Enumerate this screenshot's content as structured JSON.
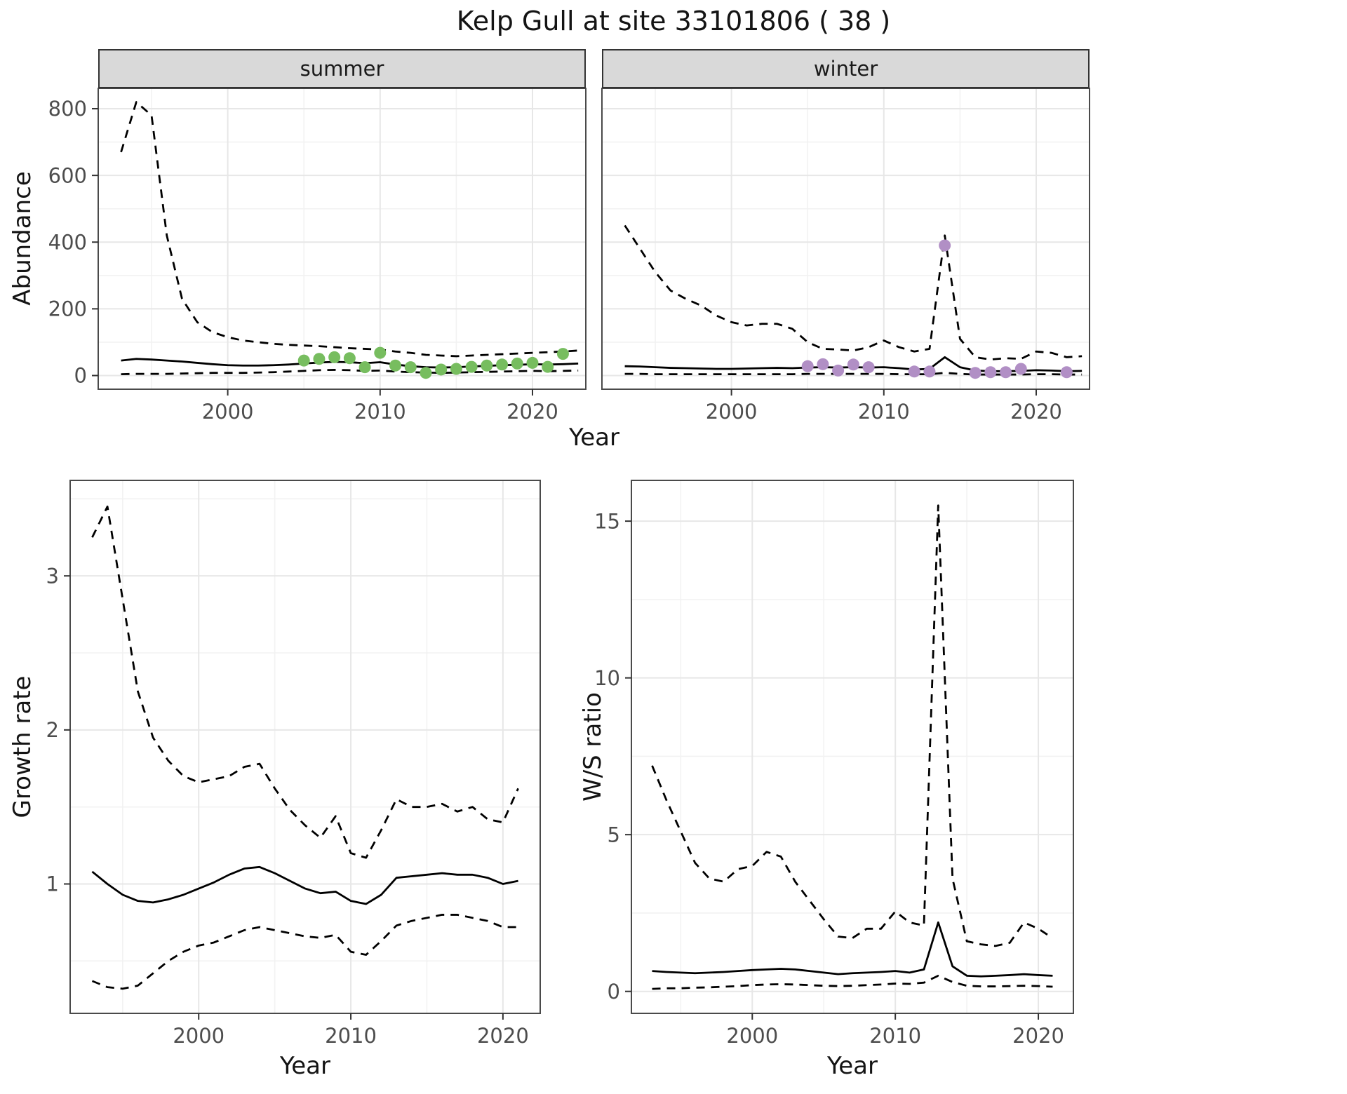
{
  "title": "Kelp Gull at site 33101806 ( 38 )",
  "chart_data": [
    {
      "id": "abundance-summer",
      "type": "line",
      "facet": "summer",
      "xlabel": "Year",
      "ylabel": "Abundance",
      "xlim": [
        1991.5,
        2023.5
      ],
      "ylim": [
        -41,
        861
      ],
      "xticks": [
        2000,
        2010,
        2020
      ],
      "yticks": [
        0,
        200,
        400,
        600,
        800
      ],
      "xminor": [
        1995,
        2005,
        2015
      ],
      "yminor": [
        100,
        300,
        500,
        700
      ],
      "grid": true,
      "legend": "none",
      "x": [
        1993,
        1994,
        1995,
        1996,
        1997,
        1998,
        1999,
        2000,
        2001,
        2002,
        2003,
        2004,
        2005,
        2006,
        2007,
        2008,
        2009,
        2010,
        2011,
        2012,
        2013,
        2014,
        2015,
        2016,
        2017,
        2018,
        2019,
        2020,
        2021,
        2022,
        2023
      ],
      "series": [
        {
          "name": "mean",
          "style": "solid",
          "values": [
            45,
            50,
            48,
            45,
            42,
            38,
            34,
            31,
            30,
            30,
            31,
            33,
            36,
            39,
            41,
            40,
            37,
            40,
            33,
            28,
            25,
            24,
            25,
            27,
            29,
            31,
            32,
            34,
            33,
            34,
            36
          ]
        },
        {
          "name": "upper-95ci",
          "style": "dashed",
          "values": [
            670,
            820,
            780,
            420,
            230,
            160,
            130,
            115,
            105,
            100,
            95,
            92,
            90,
            88,
            85,
            82,
            80,
            78,
            72,
            68,
            62,
            60,
            58,
            60,
            62,
            64,
            66,
            68,
            70,
            72,
            75
          ]
        },
        {
          "name": "lower-95ci",
          "style": "dashed",
          "values": [
            4,
            5,
            5,
            5,
            6,
            7,
            8,
            8,
            8,
            9,
            10,
            12,
            14,
            16,
            17,
            16,
            14,
            15,
            12,
            10,
            9,
            8,
            9,
            10,
            11,
            12,
            13,
            14,
            13,
            14,
            15
          ]
        }
      ],
      "points": {
        "name": "observed-counts-summer",
        "color": "#77bd5f",
        "x": [
          2005,
          2006,
          2007,
          2008,
          2009,
          2010,
          2011,
          2012,
          2013,
          2014,
          2015,
          2016,
          2017,
          2018,
          2019,
          2020,
          2021,
          2022
        ],
        "y": [
          45,
          50,
          55,
          52,
          25,
          68,
          30,
          25,
          8,
          18,
          20,
          26,
          30,
          33,
          36,
          38,
          26,
          65
        ]
      }
    },
    {
      "id": "abundance-winter",
      "type": "line",
      "facet": "winter",
      "xlabel": "Year",
      "ylabel": "",
      "xlim": [
        1991.5,
        2023.5
      ],
      "ylim": [
        -41,
        861
      ],
      "xticks": [
        2000,
        2010,
        2020
      ],
      "yticks": [
        0,
        200,
        400,
        600,
        800
      ],
      "xminor": [
        1995,
        2005,
        2015
      ],
      "yminor": [
        100,
        300,
        500,
        700
      ],
      "grid": true,
      "legend": "none",
      "x": [
        1993,
        1994,
        1995,
        1996,
        1997,
        1998,
        1999,
        2000,
        2001,
        2002,
        2003,
        2004,
        2005,
        2006,
        2007,
        2008,
        2009,
        2010,
        2011,
        2012,
        2013,
        2014,
        2015,
        2016,
        2017,
        2018,
        2019,
        2020,
        2021,
        2022,
        2023
      ],
      "series": [
        {
          "name": "mean",
          "style": "solid",
          "values": [
            28,
            27,
            25,
            23,
            22,
            21,
            20,
            20,
            21,
            22,
            23,
            22,
            24,
            25,
            24,
            25,
            24,
            25,
            22,
            18,
            20,
            55,
            25,
            15,
            13,
            13,
            14,
            16,
            15,
            13,
            14
          ]
        },
        {
          "name": "upper-95ci",
          "style": "dashed",
          "values": [
            450,
            380,
            310,
            255,
            230,
            210,
            180,
            160,
            150,
            155,
            155,
            140,
            100,
            80,
            78,
            75,
            85,
            105,
            85,
            72,
            80,
            420,
            110,
            55,
            48,
            52,
            50,
            72,
            68,
            55,
            58
          ]
        },
        {
          "name": "lower-95ci",
          "style": "dashed",
          "values": [
            5,
            5,
            4,
            4,
            4,
            4,
            4,
            4,
            4,
            4,
            4,
            4,
            5,
            5,
            5,
            5,
            5,
            5,
            4,
            4,
            4,
            8,
            5,
            3,
            3,
            3,
            3,
            4,
            4,
            3,
            3
          ]
        }
      ],
      "points": {
        "name": "observed-counts-winter",
        "color": "#b18fc5",
        "x": [
          2005,
          2006,
          2007,
          2008,
          2009,
          2012,
          2013,
          2014,
          2016,
          2017,
          2018,
          2019,
          2022
        ],
        "y": [
          28,
          34,
          15,
          33,
          25,
          12,
          12,
          390,
          8,
          10,
          10,
          20,
          10
        ]
      }
    },
    {
      "id": "growth-rate",
      "type": "line",
      "facet": "",
      "xlabel": "Year",
      "ylabel": "Growth rate",
      "xlim": [
        1991.55,
        2022.45
      ],
      "ylim": [
        0.16,
        3.62
      ],
      "xticks": [
        2000,
        2010,
        2020
      ],
      "yticks": [
        1,
        2,
        3
      ],
      "xminor": [
        1995,
        2005,
        2015
      ],
      "yminor": [
        0.5,
        1.5,
        2.5,
        3.5
      ],
      "grid": true,
      "legend": "none",
      "x": [
        1993,
        1994,
        1995,
        1996,
        1997,
        1998,
        1999,
        2000,
        2001,
        2002,
        2003,
        2004,
        2005,
        2006,
        2007,
        2008,
        2009,
        2010,
        2011,
        2012,
        2013,
        2014,
        2015,
        2016,
        2017,
        2018,
        2019,
        2020,
        2021
      ],
      "series": [
        {
          "name": "mean",
          "style": "solid",
          "values": [
            1.08,
            1.0,
            0.93,
            0.89,
            0.88,
            0.9,
            0.93,
            0.97,
            1.01,
            1.06,
            1.1,
            1.11,
            1.07,
            1.02,
            0.97,
            0.94,
            0.95,
            0.89,
            0.87,
            0.93,
            1.04,
            1.05,
            1.06,
            1.07,
            1.06,
            1.06,
            1.04,
            1.0,
            1.02
          ]
        },
        {
          "name": "upper-95ci",
          "style": "dashed",
          "values": [
            3.25,
            3.45,
            2.85,
            2.25,
            1.95,
            1.8,
            1.7,
            1.66,
            1.68,
            1.7,
            1.76,
            1.78,
            1.62,
            1.48,
            1.38,
            1.3,
            1.44,
            1.2,
            1.17,
            1.35,
            1.55,
            1.5,
            1.5,
            1.52,
            1.47,
            1.5,
            1.42,
            1.4,
            1.62
          ]
        },
        {
          "name": "lower-95ci",
          "style": "dashed",
          "values": [
            0.37,
            0.33,
            0.32,
            0.34,
            0.42,
            0.5,
            0.56,
            0.6,
            0.62,
            0.66,
            0.7,
            0.72,
            0.7,
            0.68,
            0.66,
            0.65,
            0.67,
            0.56,
            0.54,
            0.63,
            0.73,
            0.76,
            0.78,
            0.8,
            0.8,
            0.78,
            0.76,
            0.72,
            0.72
          ]
        }
      ]
    },
    {
      "id": "ws-ratio",
      "type": "line",
      "facet": "",
      "xlabel": "Year",
      "ylabel": "W/S ratio",
      "xlim": [
        1991.55,
        2022.45
      ],
      "ylim": [
        -0.7,
        16.3
      ],
      "xticks": [
        2000,
        2010,
        2020
      ],
      "yticks": [
        0,
        5,
        10,
        15
      ],
      "xminor": [
        1995,
        2005,
        2015
      ],
      "yminor": [
        2.5,
        7.5,
        12.5
      ],
      "grid": true,
      "legend": "none",
      "x": [
        1993,
        1994,
        1995,
        1996,
        1997,
        1998,
        1999,
        2000,
        2001,
        2002,
        2003,
        2004,
        2005,
        2006,
        2007,
        2008,
        2009,
        2010,
        2011,
        2012,
        2013,
        2014,
        2015,
        2016,
        2017,
        2018,
        2019,
        2020,
        2021
      ],
      "series": [
        {
          "name": "mean",
          "style": "solid",
          "values": [
            0.65,
            0.62,
            0.6,
            0.58,
            0.6,
            0.62,
            0.65,
            0.68,
            0.7,
            0.72,
            0.7,
            0.65,
            0.6,
            0.55,
            0.58,
            0.6,
            0.62,
            0.65,
            0.6,
            0.7,
            2.2,
            0.8,
            0.5,
            0.48,
            0.5,
            0.52,
            0.55,
            0.52,
            0.5
          ]
        },
        {
          "name": "upper-95ci",
          "style": "dashed",
          "values": [
            7.2,
            6.1,
            5.1,
            4.1,
            3.6,
            3.5,
            3.9,
            4.0,
            4.45,
            4.3,
            3.5,
            2.9,
            2.3,
            1.75,
            1.7,
            2.0,
            2.0,
            2.55,
            2.2,
            2.1,
            15.5,
            3.6,
            1.6,
            1.5,
            1.45,
            1.55,
            2.2,
            2.0,
            1.7
          ]
        },
        {
          "name": "lower-95ci",
          "style": "dashed",
          "values": [
            0.08,
            0.1,
            0.1,
            0.12,
            0.13,
            0.15,
            0.17,
            0.2,
            0.22,
            0.23,
            0.22,
            0.2,
            0.18,
            0.17,
            0.18,
            0.2,
            0.22,
            0.25,
            0.24,
            0.28,
            0.5,
            0.3,
            0.18,
            0.16,
            0.16,
            0.17,
            0.18,
            0.17,
            0.15
          ]
        }
      ]
    }
  ],
  "style": {
    "strip_background": "#d9d9d9",
    "panel_border": "#4a4a4a",
    "major_grid": "#e7e7e7",
    "minor_grid": "#f2f2f2",
    "line_color": "#000000",
    "tick_label_color": "#4d4d4d"
  }
}
